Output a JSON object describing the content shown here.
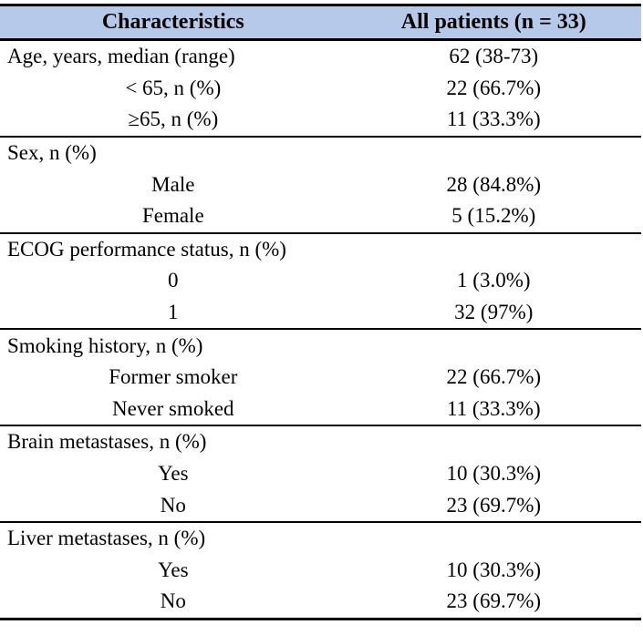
{
  "table": {
    "title": "Patient characteristics table",
    "header_bg": "#b6c9e8",
    "rule_color": "#000000",
    "header": {
      "col1": "Characteristics",
      "col2": "All patients (n = 33)"
    },
    "sections": [
      {
        "rows": [
          {
            "label": "Age, years, median (range)",
            "value": "62 (38-73)"
          },
          {
            "label": "< 65, n (%)",
            "value": "22 (66.7%)"
          },
          {
            "label": "≥65, n (%)",
            "value": "11 (33.3%)"
          }
        ]
      },
      {
        "rows": [
          {
            "label": "Sex, n (%)",
            "value": ""
          },
          {
            "label": "Male",
            "value": "28 (84.8%)"
          },
          {
            "label": "Female",
            "value": "5 (15.2%)"
          }
        ]
      },
      {
        "rows": [
          {
            "label": "ECOG performance status, n (%)",
            "value": ""
          },
          {
            "label": "0",
            "value": "1 (3.0%)"
          },
          {
            "label": "1",
            "value": "32 (97%)"
          }
        ]
      },
      {
        "rows": [
          {
            "label": "Smoking history, n (%)",
            "value": ""
          },
          {
            "label": "Former smoker",
            "value": "22 (66.7%)"
          },
          {
            "label": "Never smoked",
            "value": "11 (33.3%)"
          }
        ]
      },
      {
        "rows": [
          {
            "label": "Brain metastases, n (%)",
            "value": ""
          },
          {
            "label": "Yes",
            "value": "10 (30.3%)"
          },
          {
            "label": "No",
            "value": "23 (69.7%)"
          }
        ]
      },
      {
        "rows": [
          {
            "label": "Liver metastases, n (%)",
            "value": ""
          },
          {
            "label": "Yes",
            "value": "10 (30.3%)"
          },
          {
            "label": "No",
            "value": "23 (69.7%)"
          }
        ]
      }
    ]
  }
}
